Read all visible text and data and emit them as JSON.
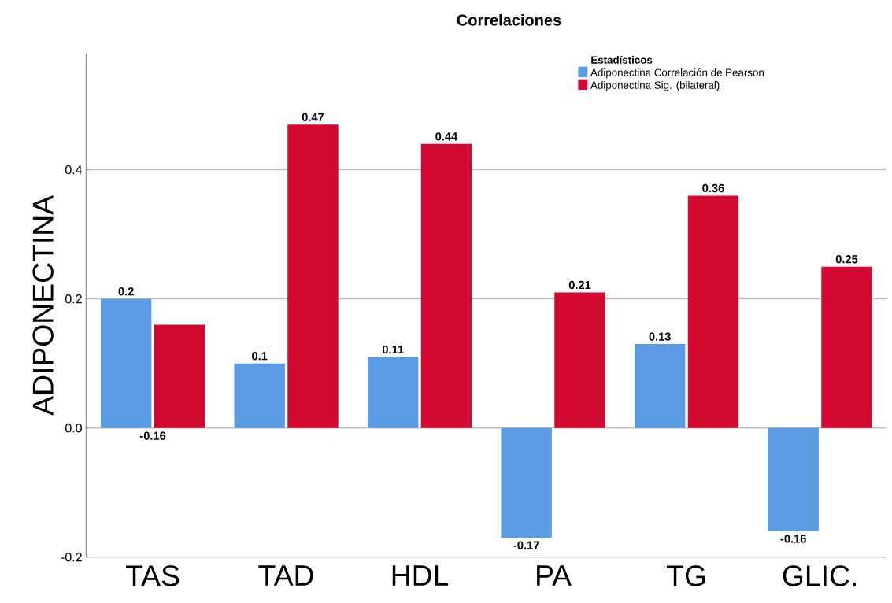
{
  "chart_data": {
    "type": "bar",
    "title": "Correlaciones",
    "ylabel": "ADIPONECTINA",
    "legend_title": "Estadísticos",
    "categories": [
      "TAS",
      "TAD",
      "HDL",
      "PA",
      "TG",
      "GLIC."
    ],
    "series": [
      {
        "name": "Adiponectina Correlación de Pearson",
        "color": "#5b9be3",
        "values": [
          0.2,
          0.1,
          0.11,
          -0.17,
          0.13,
          -0.16
        ],
        "value_labels": [
          "0.2",
          "0.1",
          "0.11",
          "-0.17",
          "0.13",
          "-0.16"
        ]
      },
      {
        "name": "Adiponectina Sig. (bilateral)",
        "color": "#d20a32",
        "values": [
          0.16,
          0.47,
          0.44,
          0.21,
          0.36,
          0.25
        ],
        "value_labels": [
          null,
          "0.47",
          "0.44",
          "0.21",
          "0.36",
          "0.25"
        ]
      }
    ],
    "ylim": [
      -0.2,
      0.58
    ],
    "yticks": [
      {
        "value": -0.2,
        "label": "-0.2"
      },
      {
        "value": 0,
        "label": "0.0"
      },
      {
        "value": 0.2,
        "label": "0.2"
      },
      {
        "value": 0.4,
        "label": "0.4"
      }
    ],
    "annotations": [
      "-0.16"
    ],
    "grid": "y",
    "legend": "top right"
  }
}
